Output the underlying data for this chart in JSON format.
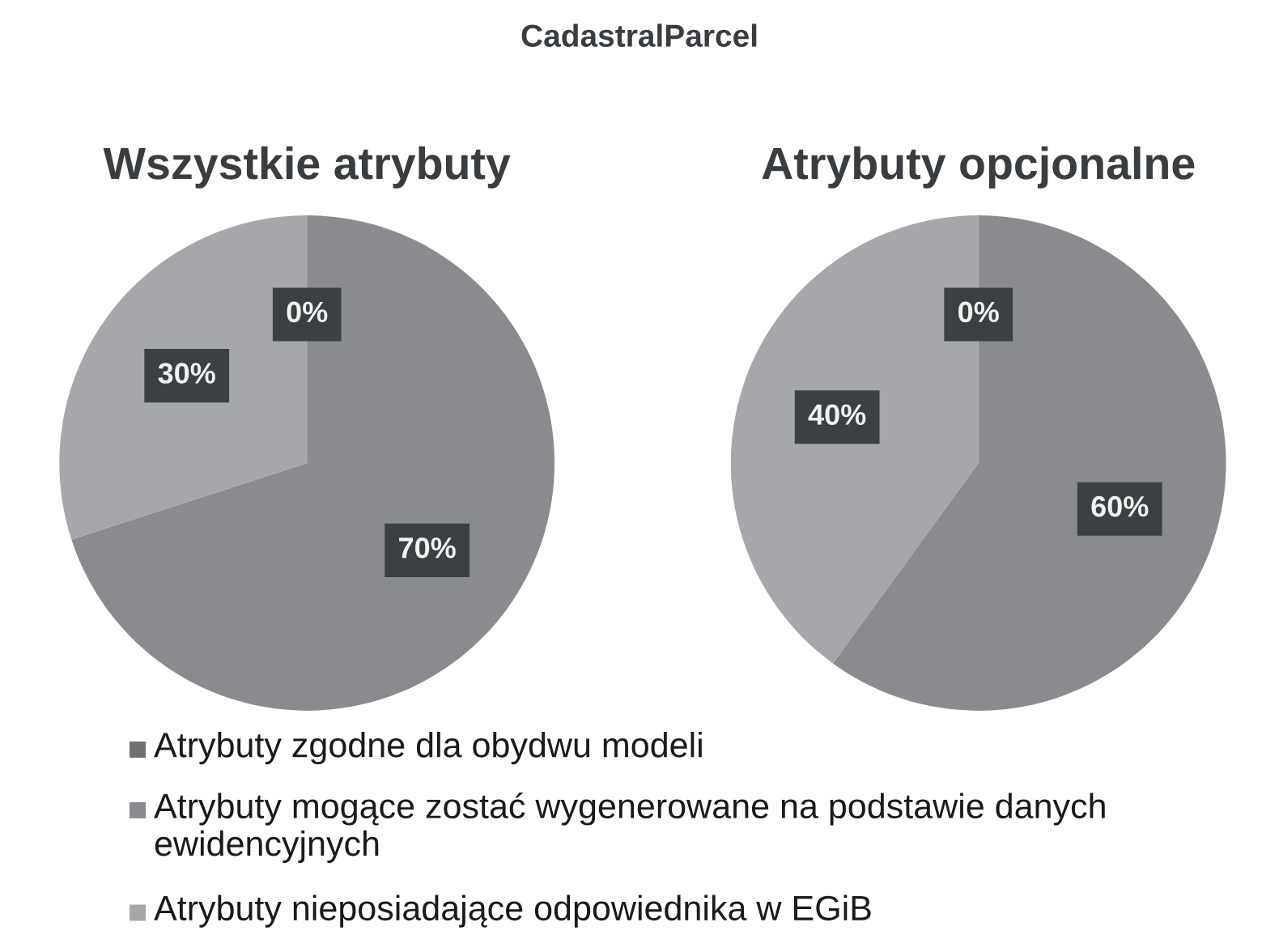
{
  "chart_data": [
    {
      "type": "pie",
      "title": "CadastralParcel",
      "subtitle": "Wszystkie atrybuty",
      "categories": [
        "Atrybuty zgodne dla obydwu modeli",
        "Atrybuty mogące zostać wygenerowane na podstawie danych ewidencyjnych",
        "Atrybuty nieposiadające odpowiednika w EGiB"
      ],
      "values": [
        0,
        70,
        30
      ],
      "value_labels": [
        "0%",
        "70%",
        "30%"
      ],
      "colors": [
        "#6f7174",
        "#898b8e",
        "#a5a7aa"
      ],
      "legend": "bottom"
    },
    {
      "type": "pie",
      "subtitle": "Atrybuty opcjonalne",
      "categories": [
        null,
        null,
        null
      ],
      "values": [
        0,
        60,
        40
      ],
      "value_labels": [
        "0%",
        "60%",
        "40%"
      ],
      "colors": [
        "#6f7174",
        "#898b8e",
        "#a5a7aa"
      ]
    }
  ]
}
